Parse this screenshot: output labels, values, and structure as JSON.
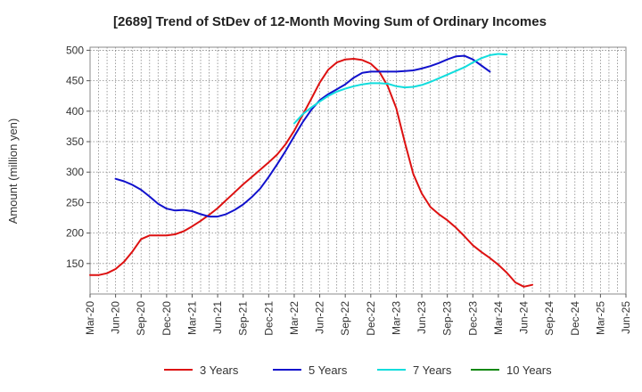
{
  "chart_data": {
    "type": "line",
    "title": "[2689]  Trend of StDev of 12-Month Moving Sum of Ordinary Incomes",
    "xlabel": "",
    "ylabel": "Amount (million yen)",
    "ylim": [
      100,
      505
    ],
    "yticks": [
      150,
      200,
      250,
      300,
      350,
      400,
      450,
      500
    ],
    "x_categories": [
      "Mar-20",
      "Jun-20",
      "Sep-20",
      "Dec-20",
      "Mar-21",
      "Jun-21",
      "Sep-21",
      "Dec-21",
      "Mar-22",
      "Jun-22",
      "Sep-22",
      "Dec-22",
      "Mar-23",
      "Jun-23",
      "Sep-23",
      "Dec-23",
      "Mar-24",
      "Jun-24",
      "Sep-24",
      "Dec-24",
      "Mar-25",
      "Jun-25"
    ],
    "grid": true,
    "legend_position": "bottom",
    "series": [
      {
        "name": "3 Years",
        "color": "#dd1111",
        "start_index": 0,
        "values": [
          131,
          131,
          134,
          141,
          153,
          170,
          190,
          196,
          196,
          196,
          198,
          203,
          211,
          220,
          230,
          241,
          254,
          267,
          280,
          292,
          304,
          316,
          329,
          346,
          368,
          394,
          420,
          447,
          468,
          480,
          485,
          486,
          484,
          478,
          465,
          441,
          405,
          349,
          297,
          265,
          243,
          231,
          221,
          209,
          195,
          180,
          169,
          159,
          148,
          135,
          119,
          112,
          115
        ]
      },
      {
        "name": "5 Years",
        "color": "#1111cc",
        "start_index": 3,
        "values": [
          289,
          285,
          279,
          271,
          260,
          248,
          240,
          237,
          238,
          236,
          231,
          227,
          227,
          231,
          238,
          247,
          259,
          273,
          292,
          313,
          335,
          359,
          382,
          402,
          418,
          428,
          436,
          444,
          455,
          463,
          465,
          465,
          465,
          465,
          466,
          467,
          470,
          474,
          479,
          485,
          490,
          491,
          485,
          475,
          465
        ]
      },
      {
        "name": "7 Years",
        "color": "#11dddd",
        "start_index": 24,
        "values": [
          380,
          395,
          406,
          416,
          425,
          432,
          437,
          441,
          444,
          446,
          446,
          445,
          441,
          439,
          440,
          443,
          448,
          454,
          460,
          466,
          472,
          480,
          487,
          492,
          494,
          493
        ]
      },
      {
        "name": "10 Years",
        "color": "#118811",
        "start_index": 0,
        "values": []
      }
    ]
  }
}
